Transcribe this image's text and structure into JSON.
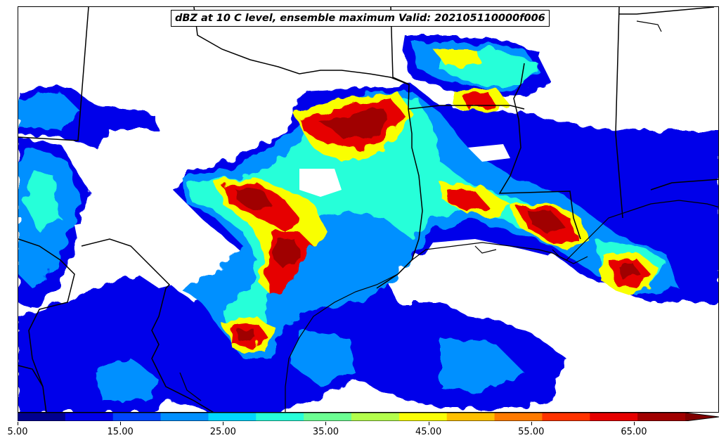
{
  "title": "dBZ at 10 C level, ensemble maximum Valid: 202105110000f006",
  "colorbar": {
    "min": 5,
    "max": 70,
    "extend": "max",
    "levels": [
      5,
      10,
      15,
      20,
      25,
      30,
      35,
      40,
      45,
      50,
      55,
      60,
      65,
      70
    ],
    "colors": [
      "#00008f",
      "#0000ea",
      "#0046ff",
      "#0090ff",
      "#00d6ff",
      "#26ffd9",
      "#6cff93",
      "#b3ff4c",
      "#f9ff06",
      "#ffc000",
      "#ff7a00",
      "#ff3300",
      "#e60000",
      "#a00000"
    ],
    "extend_color": "#800000",
    "tick_labels": [
      "5.00",
      "15.00",
      "25.00",
      "35.00",
      "45.00",
      "55.00",
      "65.00"
    ],
    "tick_values": [
      5,
      15,
      25,
      35,
      45,
      55,
      65
    ]
  }
}
